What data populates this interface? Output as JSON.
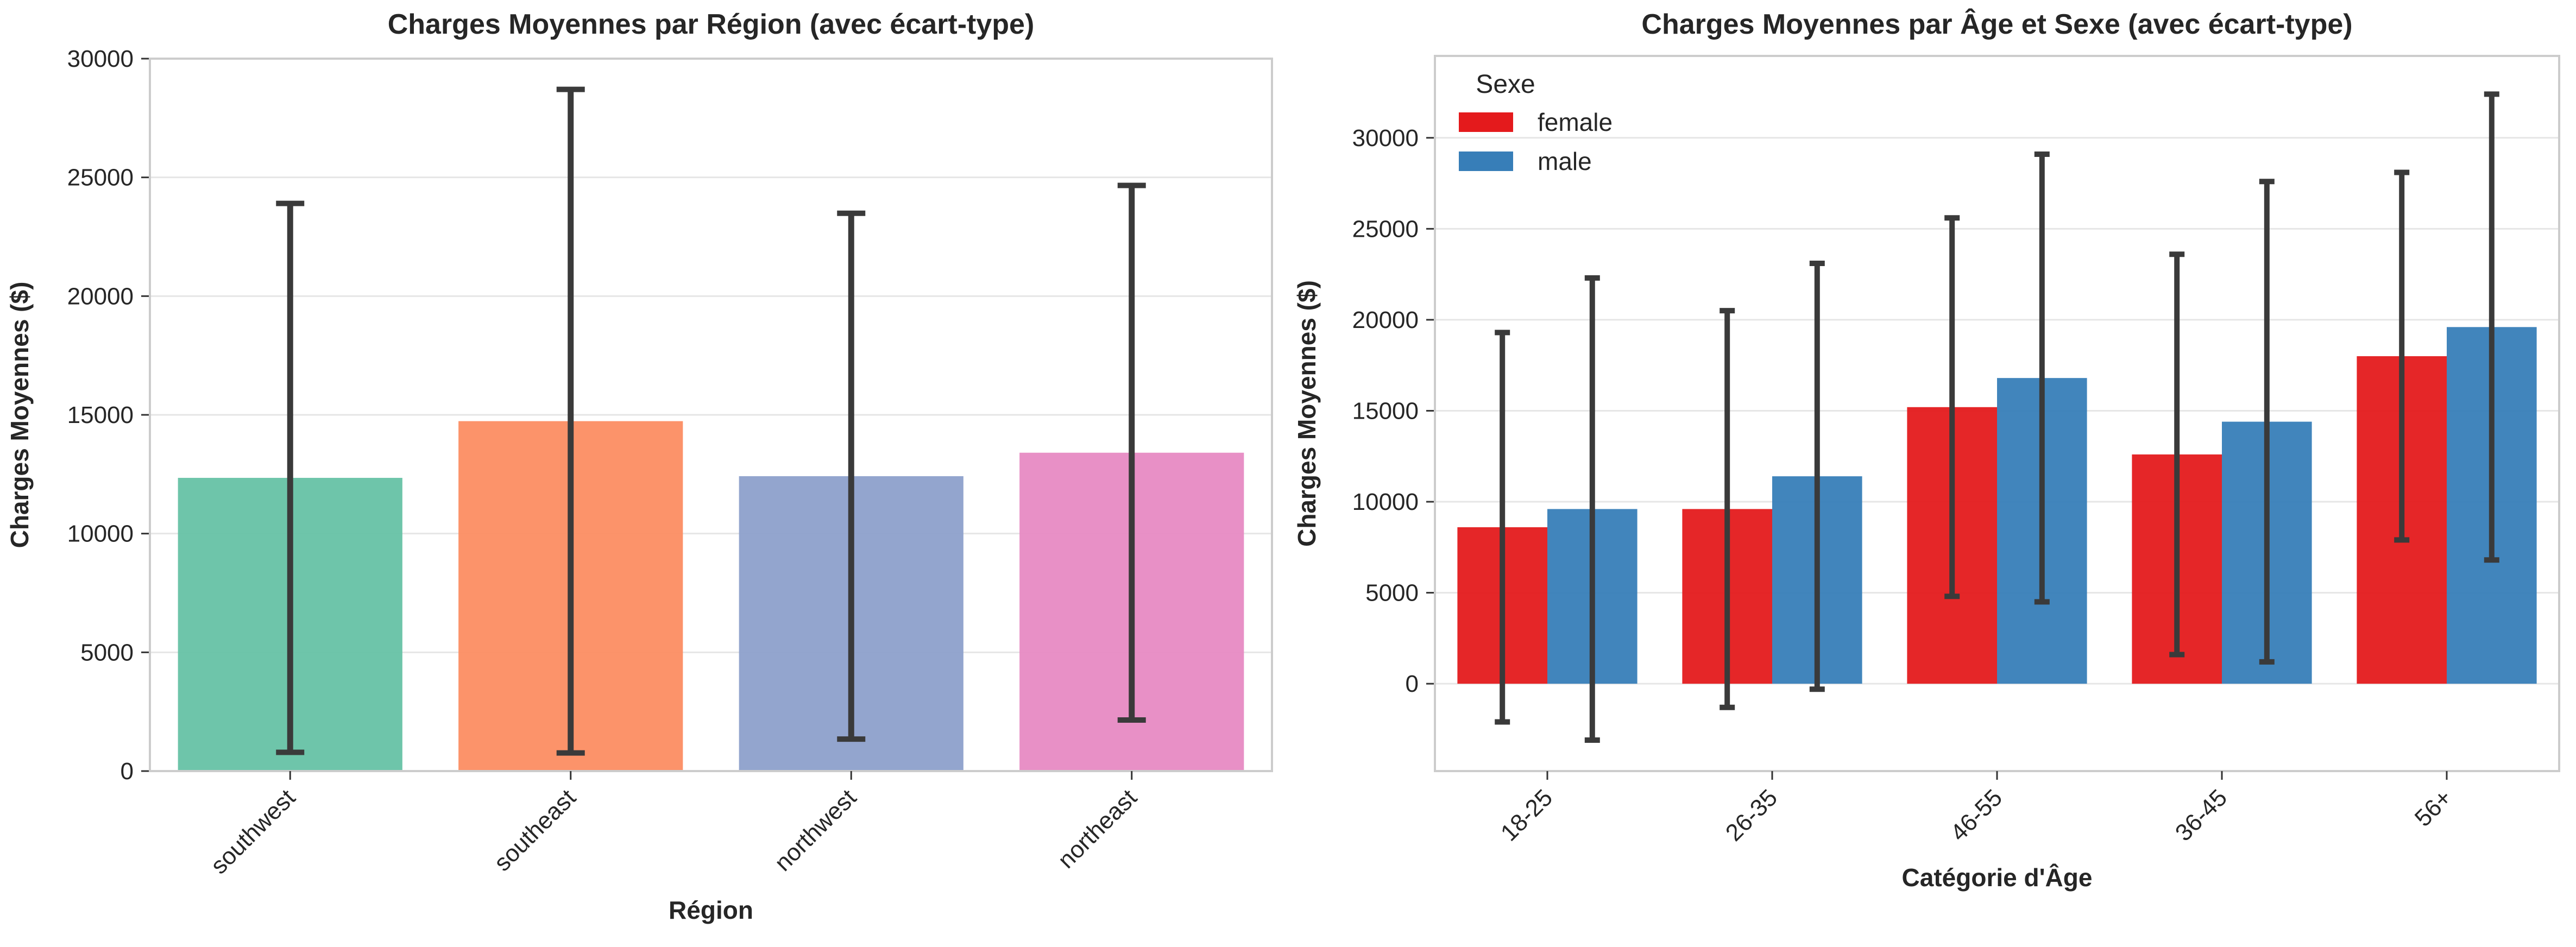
{
  "chart_data": [
    {
      "type": "bar",
      "title": "Charges Moyennes par Région (avec écart-type)",
      "xlabel": "Région",
      "ylabel": "Charges Moyennes ($)",
      "categories": [
        "southwest",
        "southeast",
        "northwest",
        "northeast"
      ],
      "values": [
        12347,
        14735,
        12418,
        13406
      ],
      "error": [
        11557,
        13971,
        11072,
        11256
      ],
      "colors": [
        "#66c2a5",
        "#fc8d62",
        "#8da0cb",
        "#e78ac3"
      ],
      "ylim": [
        0,
        30000
      ],
      "yticks": [
        0,
        5000,
        10000,
        15000,
        20000,
        25000,
        30000
      ],
      "grid": true
    },
    {
      "type": "bar",
      "title": "Charges Moyennes par Âge et Sexe (avec écart-type)",
      "xlabel": "Catégorie d'Âge",
      "ylabel": "Charges Moyennes ($)",
      "categories": [
        "18-25",
        "26-35",
        "46-55",
        "36-45",
        "56+"
      ],
      "legend_title": "Sexe",
      "legend_position": "top-left",
      "series": [
        {
          "name": "female",
          "color": "#e41a1c",
          "values": [
            8600,
            9600,
            15200,
            12600,
            18000
          ],
          "error": [
            10700,
            10900,
            10400,
            11000,
            10100
          ]
        },
        {
          "name": "male",
          "color": "#377eb8",
          "values": [
            9600,
            11400,
            16800,
            14400,
            19600
          ],
          "error": [
            12700,
            11700,
            12300,
            13200,
            12800
          ]
        }
      ],
      "ylim": [
        -4800,
        34500
      ],
      "yticks": [
        0,
        5000,
        10000,
        15000,
        20000,
        25000,
        30000
      ],
      "grid": true
    }
  ]
}
